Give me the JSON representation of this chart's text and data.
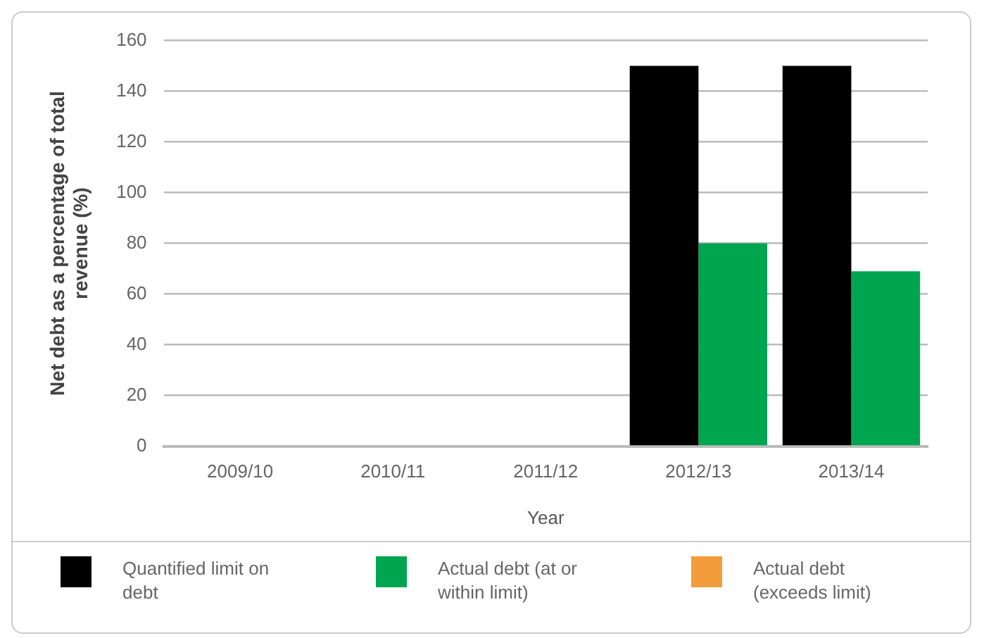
{
  "chart_data": {
    "type": "bar",
    "xlabel": "Year",
    "ylabel": "Net debt as a percentage of total revenue (%)",
    "categories": [
      "2009/10",
      "2010/11",
      "2011/12",
      "2012/13",
      "2013/14"
    ],
    "series": [
      {
        "name": "Quantified limit on debt",
        "color": "#000000",
        "values": [
          null,
          null,
          null,
          150,
          150
        ]
      },
      {
        "name": "Actual debt (at or within limit)",
        "color": "#00a550",
        "values": [
          null,
          null,
          null,
          80,
          69
        ]
      },
      {
        "name": "Actual debt (exceeds limit)",
        "color": "#f39c3c",
        "values": [
          null,
          null,
          null,
          null,
          null
        ]
      }
    ],
    "ylim": [
      0,
      160
    ],
    "yticks": [
      0,
      20,
      40,
      60,
      80,
      100,
      120,
      140,
      160
    ],
    "grid": "y",
    "legend": "bottom"
  }
}
